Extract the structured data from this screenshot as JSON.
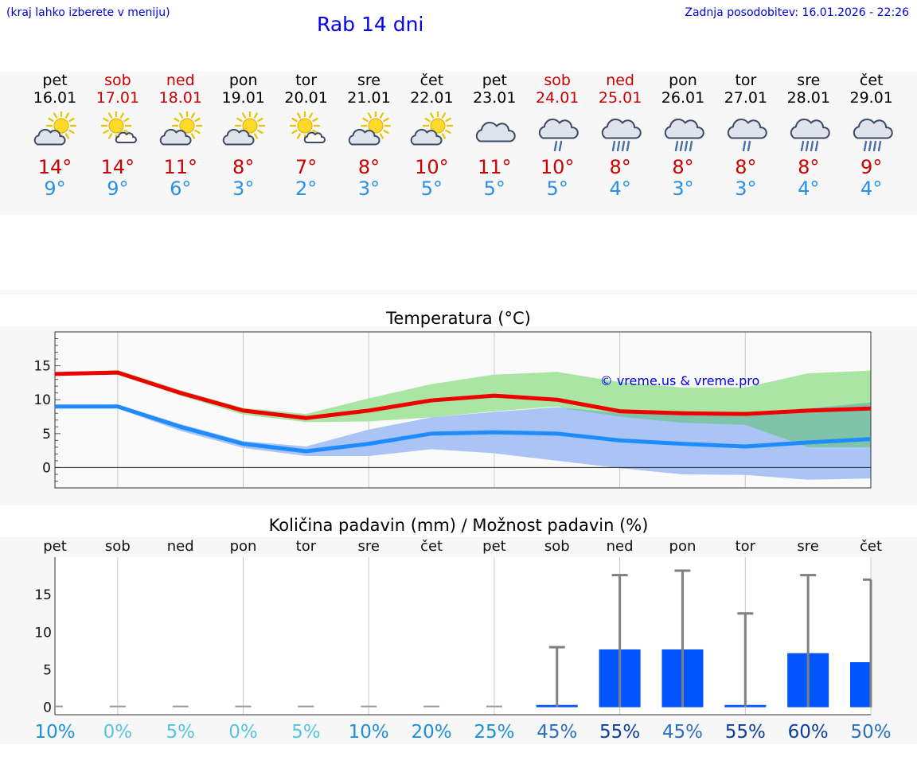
{
  "header": {
    "note": "(kraj lahko izberete v meniju)",
    "title": "Rab 14 dni",
    "updated": "Zadnja posodobitev: 16.01.2026 - 22:26"
  },
  "days": [
    {
      "name": "pet",
      "date": "16.01",
      "tmax": "14°",
      "tmin": "9°",
      "weekend": false,
      "icon": "partly-sunny-icon"
    },
    {
      "name": "sob",
      "date": "17.01",
      "tmax": "14°",
      "tmin": "9°",
      "weekend": true,
      "icon": "sun-small-cloud-icon"
    },
    {
      "name": "ned",
      "date": "18.01",
      "tmax": "11°",
      "tmin": "6°",
      "weekend": true,
      "icon": "partly-sunny-icon"
    },
    {
      "name": "pon",
      "date": "19.01",
      "tmax": "8°",
      "tmin": "3°",
      "weekend": false,
      "icon": "partly-sunny-icon"
    },
    {
      "name": "tor",
      "date": "20.01",
      "tmax": "7°",
      "tmin": "2°",
      "weekend": false,
      "icon": "sun-small-cloud-icon"
    },
    {
      "name": "sre",
      "date": "21.01",
      "tmax": "8°",
      "tmin": "3°",
      "weekend": false,
      "icon": "partly-sunny-icon"
    },
    {
      "name": "čet",
      "date": "22.01",
      "tmax": "10°",
      "tmin": "5°",
      "weekend": false,
      "icon": "partly-sunny-icon"
    },
    {
      "name": "pet",
      "date": "23.01",
      "tmax": "11°",
      "tmin": "5°",
      "weekend": false,
      "icon": "cloud-icon"
    },
    {
      "name": "sob",
      "date": "24.01",
      "tmax": "10°",
      "tmin": "5°",
      "weekend": true,
      "icon": "light-rain-icon"
    },
    {
      "name": "ned",
      "date": "25.01",
      "tmax": "8°",
      "tmin": "4°",
      "weekend": true,
      "icon": "rain-icon"
    },
    {
      "name": "pon",
      "date": "26.01",
      "tmax": "8°",
      "tmin": "3°",
      "weekend": false,
      "icon": "rain-icon"
    },
    {
      "name": "tor",
      "date": "27.01",
      "tmax": "8°",
      "tmin": "3°",
      "weekend": false,
      "icon": "light-rain-icon"
    },
    {
      "name": "sre",
      "date": "28.01",
      "tmax": "8°",
      "tmin": "4°",
      "weekend": false,
      "icon": "rain-icon"
    },
    {
      "name": "čet",
      "date": "29.01",
      "tmax": "9°",
      "tmin": "4°",
      "weekend": false,
      "icon": "rain-icon"
    }
  ],
  "colors": {
    "max_line": "#ee0000",
    "min_line": "#1e8cff",
    "max_band": "#a9e6a4",
    "min_band": "#aac4f5",
    "overlap_band": "#7fc4a8",
    "bar": "#0055ff",
    "whisker": "#808080",
    "grid": "#c8c8c8",
    "pct_low": "#1e90d6",
    "pct_mid": "#2a6fc0",
    "pct_high": "#0b3f9e",
    "pct_zero": "#55c4e0"
  },
  "chart_data": [
    {
      "type": "line",
      "title": "Temperatura (°C)",
      "watermark": "© vreme.us & vreme.pro",
      "categories": [
        "16.01",
        "17.01",
        "18.01",
        "19.01",
        "20.01",
        "21.01",
        "22.01",
        "23.01",
        "24.01",
        "25.01",
        "26.01",
        "27.01",
        "28.01",
        "29.01"
      ],
      "ylim": [
        -3,
        20
      ],
      "yticks": [
        0,
        5,
        10,
        15
      ],
      "series": [
        {
          "name": "max",
          "values": [
            13.8,
            14.0,
            11.0,
            8.4,
            7.3,
            8.4,
            9.9,
            10.6,
            10.0,
            8.3,
            8.0,
            7.9,
            8.4,
            8.7
          ],
          "range_low": [
            13.6,
            13.8,
            10.6,
            7.8,
            6.7,
            6.8,
            7.4,
            8.3,
            9.0,
            7.5,
            6.6,
            6.3,
            3.0,
            3.0
          ],
          "range_high": [
            13.9,
            14.4,
            11.4,
            8.8,
            7.9,
            10.2,
            12.3,
            13.7,
            14.1,
            12.6,
            11.8,
            11.8,
            13.9,
            14.3
          ]
        },
        {
          "name": "min",
          "values": [
            9.0,
            9.0,
            6.0,
            3.5,
            2.4,
            3.5,
            5.0,
            5.2,
            5.0,
            4.0,
            3.5,
            3.1,
            3.7,
            4.2
          ],
          "range_low": [
            8.7,
            8.7,
            5.4,
            2.9,
            1.7,
            1.7,
            2.7,
            2.1,
            1.0,
            -0.1,
            -1.0,
            -1.1,
            -1.8,
            -1.6
          ],
          "range_high": [
            9.2,
            9.3,
            6.4,
            3.9,
            3.1,
            5.6,
            7.4,
            8.2,
            8.9,
            8.0,
            7.8,
            7.9,
            8.7,
            9.6
          ]
        }
      ]
    },
    {
      "type": "bar",
      "title": "Količina padavin (mm) / Možnost padavin (%)",
      "categories": [
        "pet",
        "sob",
        "ned",
        "pon",
        "tor",
        "sre",
        "čet",
        "pet",
        "sob",
        "ned",
        "pon",
        "tor",
        "sre",
        "čet"
      ],
      "ylim": [
        -1,
        20
      ],
      "yticks": [
        0,
        5,
        10,
        15
      ],
      "values": [
        0,
        0,
        0,
        0,
        0,
        0,
        0,
        0,
        0.3,
        7.7,
        7.7,
        0.3,
        7.2,
        6.0
      ],
      "whisker_high": [
        0,
        0,
        0,
        0,
        0,
        0,
        0,
        0,
        8.0,
        17.6,
        18.2,
        12.5,
        17.6,
        17.0
      ],
      "probability": [
        "10%",
        "0%",
        "5%",
        "0%",
        "5%",
        "10%",
        "20%",
        "25%",
        "45%",
        "55%",
        "45%",
        "55%",
        "60%",
        "50%"
      ]
    }
  ]
}
